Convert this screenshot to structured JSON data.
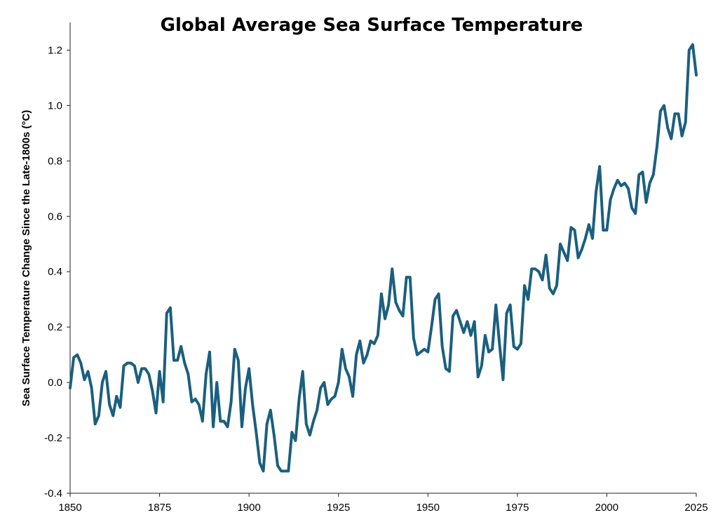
{
  "chart_data": {
    "type": "line",
    "title": "Global Average Sea Surface Temperature",
    "xlabel": "",
    "ylabel": "Sea Surface Temperature Change Since the Late-1800s (°C)",
    "xlim": [
      1850,
      2025
    ],
    "ylim": [
      -0.4,
      1.3
    ],
    "xticks": [
      1850,
      1875,
      1900,
      1925,
      1950,
      1975,
      2000,
      2025
    ],
    "yticks": [
      -0.4,
      -0.2,
      0.0,
      0.2,
      0.4,
      0.6,
      0.8,
      1.0,
      1.2
    ],
    "ytick_labels": [
      "-0.4",
      "-0.2",
      "0.0",
      "0.2",
      "0.4",
      "0.6",
      "0.8",
      "1.0",
      "1.2"
    ],
    "grid": false,
    "legend": "none",
    "color": "#1b5f7e",
    "series": [
      {
        "x": [
          1850,
          1851,
          1852,
          1853,
          1854,
          1855,
          1856,
          1857,
          1858,
          1859,
          1860,
          1861,
          1862,
          1863,
          1864,
          1865,
          1866,
          1867,
          1868,
          1869,
          1870,
          1871,
          1872,
          1873,
          1874,
          1875,
          1876,
          1877,
          1878,
          1879,
          1880,
          1881,
          1882,
          1883,
          1884,
          1885,
          1886,
          1887,
          1888,
          1889,
          1890,
          1891,
          1892,
          1893,
          1894,
          1895,
          1896,
          1897,
          1898,
          1899,
          1900,
          1901,
          1902,
          1903,
          1904,
          1905,
          1906,
          1907,
          1908,
          1909,
          1910,
          1911,
          1912,
          1913,
          1914,
          1915,
          1916,
          1917,
          1918,
          1919,
          1920,
          1921,
          1922,
          1923,
          1924,
          1925,
          1926,
          1927,
          1928,
          1929,
          1930,
          1931,
          1932,
          1933,
          1934,
          1935,
          1936,
          1937,
          1938,
          1939,
          1940,
          1941,
          1942,
          1943,
          1944,
          1945,
          1946,
          1947,
          1948,
          1949,
          1950,
          1951,
          1952,
          1953,
          1954,
          1955,
          1956,
          1957,
          1958,
          1959,
          1960,
          1961,
          1962,
          1963,
          1964,
          1965,
          1966,
          1967,
          1968,
          1969,
          1970,
          1971,
          1972,
          1973,
          1974,
          1975,
          1976,
          1977,
          1978,
          1979,
          1980,
          1981,
          1982,
          1983,
          1984,
          1985,
          1986,
          1987,
          1988,
          1989,
          1990,
          1991,
          1992,
          1993,
          1994,
          1995,
          1996,
          1997,
          1998,
          1999,
          2000,
          2001,
          2002,
          2003,
          2004,
          2005,
          2006,
          2007,
          2008,
          2009,
          2010,
          2011,
          2012,
          2013,
          2014,
          2015,
          2016,
          2017,
          2018,
          2019,
          2020,
          2021,
          2022,
          2023,
          2024,
          2025
        ],
        "y": [
          -0.02,
          0.09,
          0.1,
          0.07,
          0.01,
          0.04,
          -0.02,
          -0.15,
          -0.12,
          0.0,
          0.04,
          -0.08,
          -0.12,
          -0.05,
          -0.09,
          0.06,
          0.07,
          0.07,
          0.06,
          0.0,
          0.05,
          0.05,
          0.03,
          -0.03,
          -0.11,
          0.04,
          -0.07,
          0.25,
          0.27,
          0.08,
          0.08,
          0.13,
          0.07,
          0.03,
          -0.07,
          -0.06,
          -0.08,
          -0.14,
          0.03,
          0.11,
          -0.16,
          0.0,
          -0.14,
          -0.14,
          -0.16,
          -0.07,
          0.12,
          0.08,
          -0.16,
          -0.02,
          0.05,
          -0.08,
          -0.18,
          -0.29,
          -0.32,
          -0.15,
          -0.1,
          -0.19,
          -0.3,
          -0.32,
          -0.32,
          -0.32,
          -0.18,
          -0.21,
          -0.06,
          0.04,
          -0.15,
          -0.19,
          -0.14,
          -0.1,
          -0.02,
          0.0,
          -0.08,
          -0.06,
          -0.05,
          0.0,
          0.12,
          0.05,
          0.02,
          -0.05,
          0.1,
          0.15,
          0.07,
          0.1,
          0.15,
          0.14,
          0.17,
          0.32,
          0.23,
          0.28,
          0.41,
          0.29,
          0.26,
          0.24,
          0.38,
          0.38,
          0.16,
          0.1,
          0.11,
          0.12,
          0.11,
          0.2,
          0.3,
          0.32,
          0.13,
          0.05,
          0.04,
          0.24,
          0.26,
          0.22,
          0.18,
          0.22,
          0.17,
          0.22,
          0.02,
          0.06,
          0.17,
          0.11,
          0.12,
          0.28,
          0.14,
          0.01,
          0.25,
          0.28,
          0.13,
          0.12,
          0.14,
          0.35,
          0.3,
          0.41,
          0.41,
          0.4,
          0.37,
          0.46,
          0.34,
          0.32,
          0.35,
          0.5,
          0.47,
          0.44,
          0.56,
          0.55,
          0.45,
          0.48,
          0.52,
          0.57,
          0.52,
          0.69,
          0.78,
          0.55,
          0.55,
          0.66,
          0.7,
          0.73,
          0.71,
          0.72,
          0.7,
          0.63,
          0.61,
          0.75,
          0.76,
          0.65,
          0.72,
          0.75,
          0.85,
          0.98,
          1.0,
          0.92,
          0.88,
          0.97,
          0.97,
          0.89,
          0.94,
          1.2,
          1.22,
          1.11
        ]
      }
    ]
  }
}
